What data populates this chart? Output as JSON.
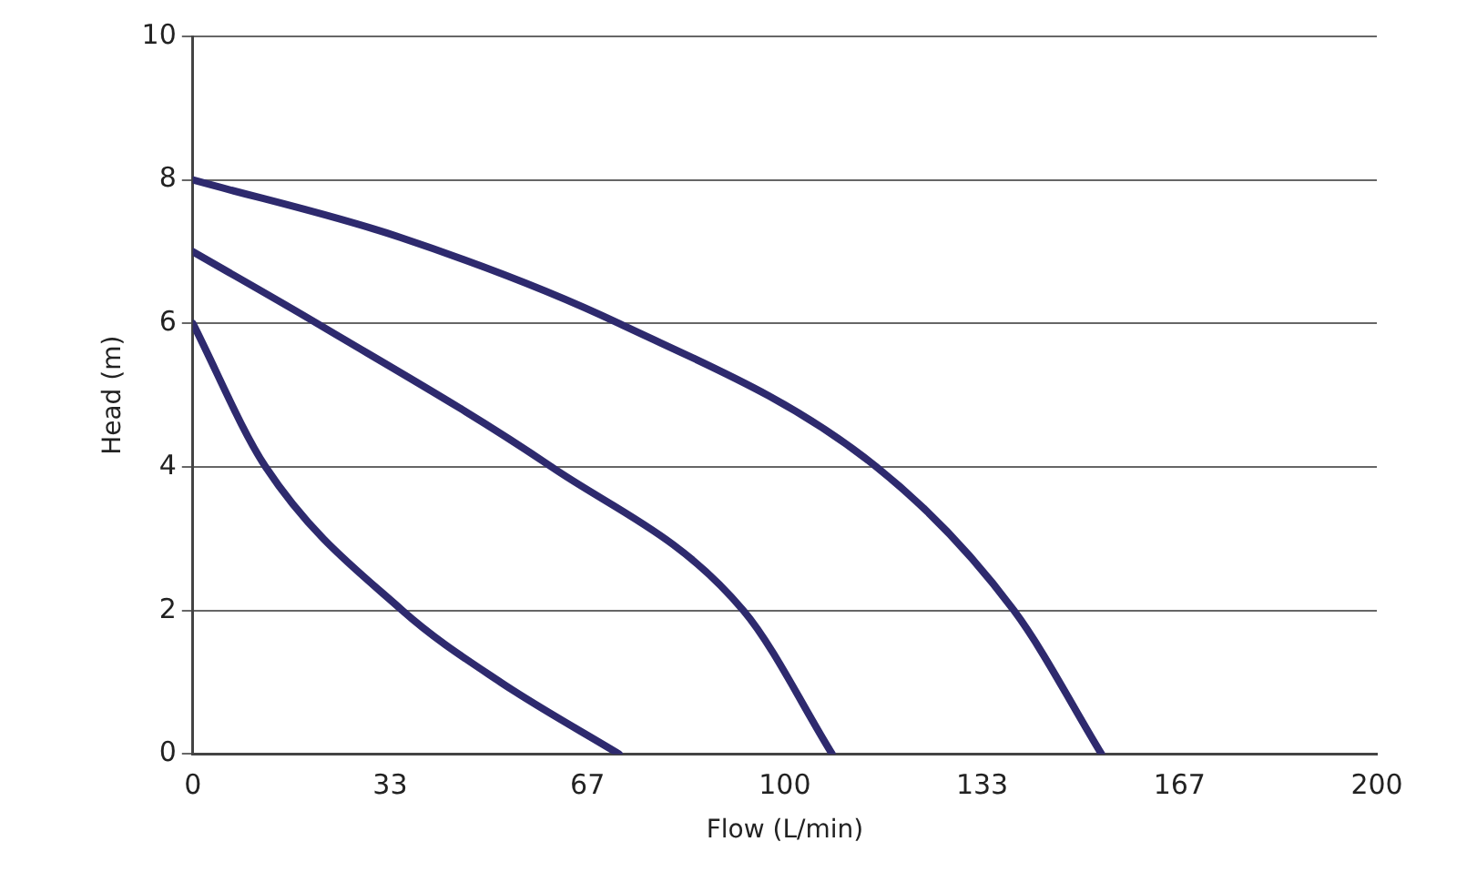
{
  "chart_data": {
    "type": "line",
    "xlabel": "Flow (L/min)",
    "ylabel": "Head (m)",
    "series": [
      {
        "color": "#2e2a6e",
        "x": [
          0,
          12.3,
          35.4,
          52,
          72
        ],
        "values": [
          6,
          4,
          2,
          1,
          0
        ]
      },
      {
        "color": "#2e2a6e",
        "x": [
          0,
          21,
          60.6,
          93,
          108
        ],
        "values": [
          7,
          6,
          4,
          2,
          0
        ]
      },
      {
        "color": "#2e2a6e",
        "x": [
          0,
          35,
          72,
          115.5,
          138.7,
          153.5
        ],
        "values": [
          8,
          7.2,
          6,
          4,
          2,
          0
        ]
      }
    ],
    "xlim": [
      0,
      200
    ],
    "xticks": [
      0,
      {
        "value": 33.33,
        "label": "33"
      },
      {
        "value": 66.67,
        "label": "67"
      },
      100,
      {
        "value": 133.33,
        "label": "133"
      },
      {
        "value": 166.67,
        "label": "167"
      },
      200
    ],
    "ylim": [
      0,
      10
    ],
    "yticks": [
      0,
      2,
      4,
      6,
      8,
      10
    ],
    "grid": "y",
    "legend": false,
    "marker": "none",
    "line_style": "solid"
  }
}
